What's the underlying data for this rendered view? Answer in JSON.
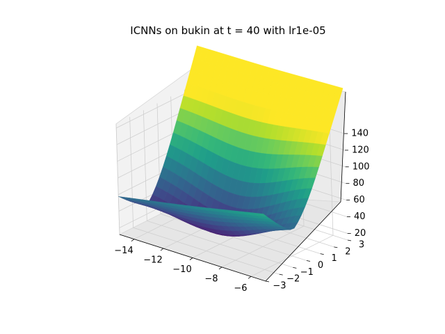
{
  "chart_data": {
    "type": "surface3d",
    "title": "ICNNs on bukin at t = 40 with lr1e-05",
    "colormap": "viridis",
    "x_axis": {
      "range": [
        -15,
        -5
      ],
      "ticks": [
        -14,
        -12,
        -10,
        -8,
        -6
      ],
      "tick_labels": [
        "−14",
        "−12",
        "−10",
        "−8",
        "−6"
      ]
    },
    "y_axis": {
      "range": [
        -3,
        3
      ],
      "ticks": [
        -3,
        -2,
        -1,
        0,
        1,
        2,
        3
      ],
      "tick_labels": [
        "−3",
        "−2",
        "−1",
        "0",
        "1",
        "2",
        "3"
      ]
    },
    "z_axis": {
      "range": [
        12,
        145
      ],
      "ticks": [
        20,
        40,
        60,
        80,
        100,
        120,
        140
      ],
      "tick_labels": [
        "20",
        "40",
        "60",
        "80",
        "100",
        "120",
        "140"
      ]
    },
    "surface_samples": [
      {
        "x": -15,
        "y": -3,
        "z": 20
      },
      {
        "x": -15,
        "y": 3,
        "z": 95
      },
      {
        "x": -10,
        "y": 0,
        "z": 30
      },
      {
        "x": -5,
        "y": -3,
        "z": 55
      },
      {
        "x": -5,
        "y": 3,
        "z": 100
      }
    ],
    "grid": true
  }
}
